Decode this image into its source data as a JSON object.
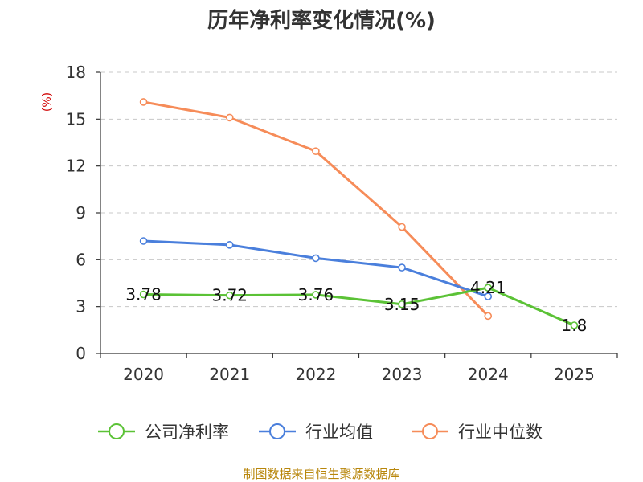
{
  "chart_data": {
    "type": "line",
    "title": "历年净利率变化情况(%)",
    "ylabel": "(%)",
    "xlabel": "",
    "categories": [
      "2020",
      "2021",
      "2022",
      "2023",
      "2024",
      "2025"
    ],
    "ylim": [
      0,
      18
    ],
    "yticks": [
      0,
      3,
      6,
      9,
      12,
      15,
      18
    ],
    "grid": true,
    "legend_position": "bottom",
    "series": [
      {
        "name": "公司净利率",
        "color": "#5bc236",
        "values": [
          3.78,
          3.72,
          3.76,
          3.15,
          4.21,
          1.8
        ],
        "show_labels": true,
        "labels": [
          "3.78",
          "3.72",
          "3.76",
          "3.15",
          "4.21",
          "1.8"
        ]
      },
      {
        "name": "行业均值",
        "color": "#4a7fdc",
        "values": [
          7.2,
          6.95,
          6.1,
          5.5,
          3.65,
          null
        ],
        "show_labels": false
      },
      {
        "name": "行业中位数",
        "color": "#f68c59",
        "values": [
          16.1,
          15.1,
          12.95,
          8.1,
          2.4,
          null
        ],
        "show_labels": false
      }
    ]
  },
  "source": "制图数据来自恒生聚源数据库"
}
